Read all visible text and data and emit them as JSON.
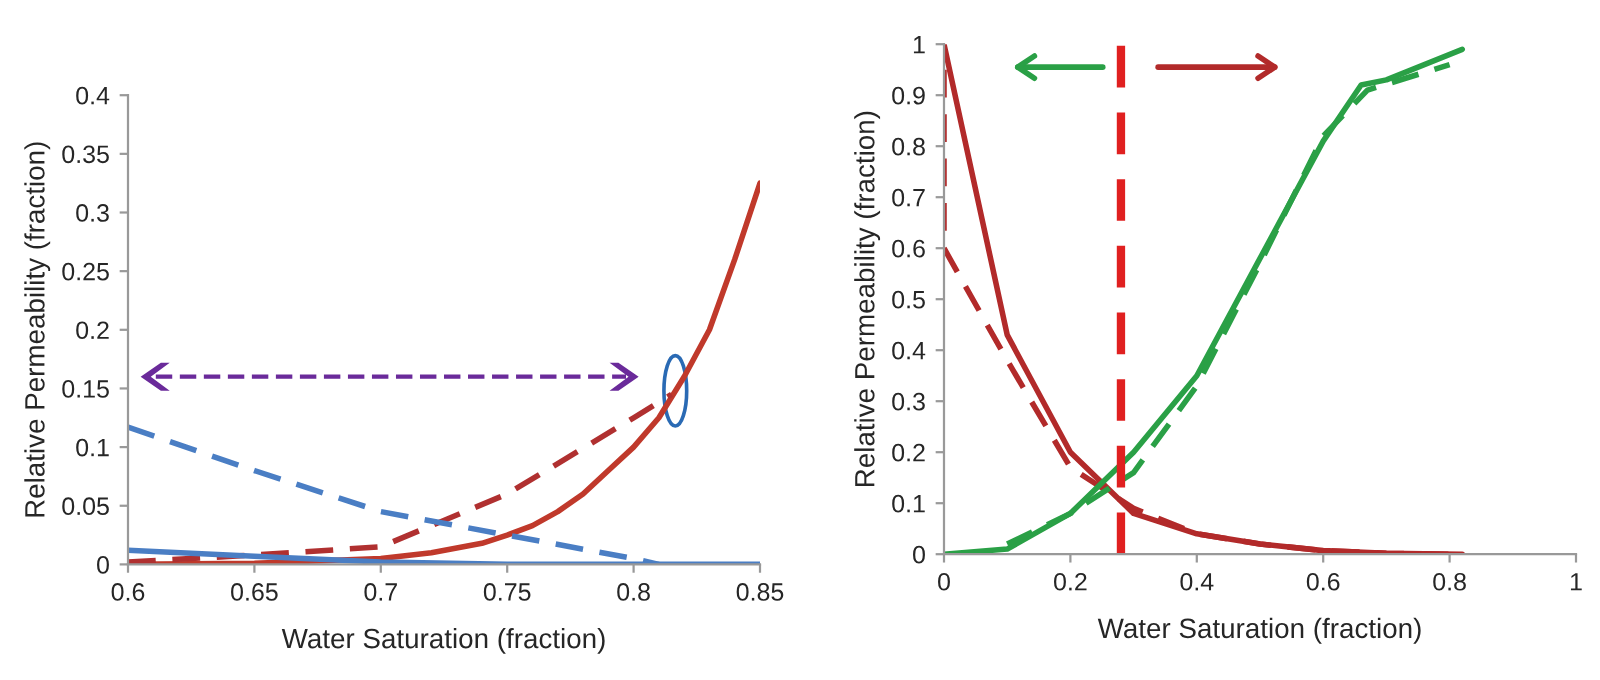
{
  "chart_data": [
    {
      "type": "line",
      "xlabel": "Water Saturation (fraction)",
      "ylabel": "Relative Permeability (fraction)",
      "xlim": [
        0.6,
        0.85
      ],
      "xticks": [
        0.6,
        0.65,
        0.7,
        0.75,
        0.8,
        0.85
      ],
      "ylim": [
        0,
        0.4
      ],
      "yticks": [
        0,
        0.05,
        0.1,
        0.15,
        0.2,
        0.25,
        0.3,
        0.35,
        0.4
      ],
      "grid": false,
      "legend": false,
      "series": [
        {
          "color": "#c0392b",
          "line_style": "solid",
          "x": [
            0.6,
            0.65,
            0.7,
            0.72,
            0.74,
            0.75,
            0.76,
            0.77,
            0.78,
            0.79,
            0.8,
            0.81,
            0.82,
            0.83,
            0.84,
            0.85
          ],
          "values": [
            0.0,
            0.001,
            0.005,
            0.01,
            0.018,
            0.025,
            0.033,
            0.045,
            0.06,
            0.08,
            0.1,
            0.125,
            0.16,
            0.2,
            0.26,
            0.325
          ]
        },
        {
          "color": "#b03030",
          "line_style": "dashed",
          "x": [
            0.6,
            0.65,
            0.7,
            0.75,
            0.8,
            0.815
          ],
          "values": [
            0.002,
            0.008,
            0.015,
            0.06,
            0.125,
            0.145
          ]
        },
        {
          "color": "#4a7ec4",
          "line_style": "dashed",
          "x": [
            0.6,
            0.65,
            0.7,
            0.75,
            0.8,
            0.81
          ],
          "values": [
            0.117,
            0.08,
            0.045,
            0.025,
            0.005,
            0
          ]
        },
        {
          "color": "#4a7ec4",
          "line_style": "solid",
          "x": [
            0.6,
            0.65,
            0.7,
            0.75,
            0.8,
            0.85
          ],
          "values": [
            0.012,
            0.007,
            0.002,
            0,
            0,
            0
          ]
        }
      ]
    },
    {
      "type": "line",
      "xlabel": "Water Saturation (fraction)",
      "ylabel": "Relative Permeability (fraction)",
      "xlim": [
        0,
        1
      ],
      "xticks": [
        0,
        0.2,
        0.4,
        0.6,
        0.8,
        1
      ],
      "ylim": [
        0,
        1
      ],
      "yticks": [
        0,
        0.1,
        0.2,
        0.3,
        0.4,
        0.5,
        0.6,
        0.7,
        0.8,
        0.9,
        1
      ],
      "grid": false,
      "legend": false,
      "ref_lines": [
        {
          "axis": "x",
          "value": 0.28,
          "color": "#e02020",
          "line_style": "dashed"
        }
      ],
      "series": [
        {
          "color": "#b22a2a",
          "line_style": "solid",
          "x": [
            0,
            0.1,
            0.2,
            0.3,
            0.4,
            0.5,
            0.6,
            0.7,
            0.82
          ],
          "values": [
            1,
            0.43,
            0.2,
            0.08,
            0.04,
            0.02,
            0.007,
            0.002,
            0
          ]
        },
        {
          "color": "#b22a2a",
          "line_style": "dashed",
          "x": [
            0,
            0,
            0.1,
            0.2,
            0.3,
            0.4,
            0.5,
            0.6,
            0.7,
            0.8
          ],
          "values": [
            0.95,
            0.6,
            0.38,
            0.17,
            0.09,
            0.04,
            0.02,
            0.007,
            0.002,
            0
          ]
        },
        {
          "color": "#2aa046",
          "line_style": "solid",
          "x": [
            0,
            0.1,
            0.2,
            0.3,
            0.4,
            0.5,
            0.6,
            0.66,
            0.7,
            0.82
          ],
          "values": [
            0,
            0.01,
            0.08,
            0.2,
            0.35,
            0.58,
            0.81,
            0.92,
            0.93,
            0.99
          ]
        },
        {
          "color": "#2aa046",
          "line_style": "dashed",
          "x": [
            0.1,
            0.2,
            0.3,
            0.4,
            0.5,
            0.6,
            0.67,
            0.8
          ],
          "values": [
            0.02,
            0.08,
            0.16,
            0.33,
            0.57,
            0.82,
            0.91,
            0.96
          ]
        }
      ]
    }
  ]
}
